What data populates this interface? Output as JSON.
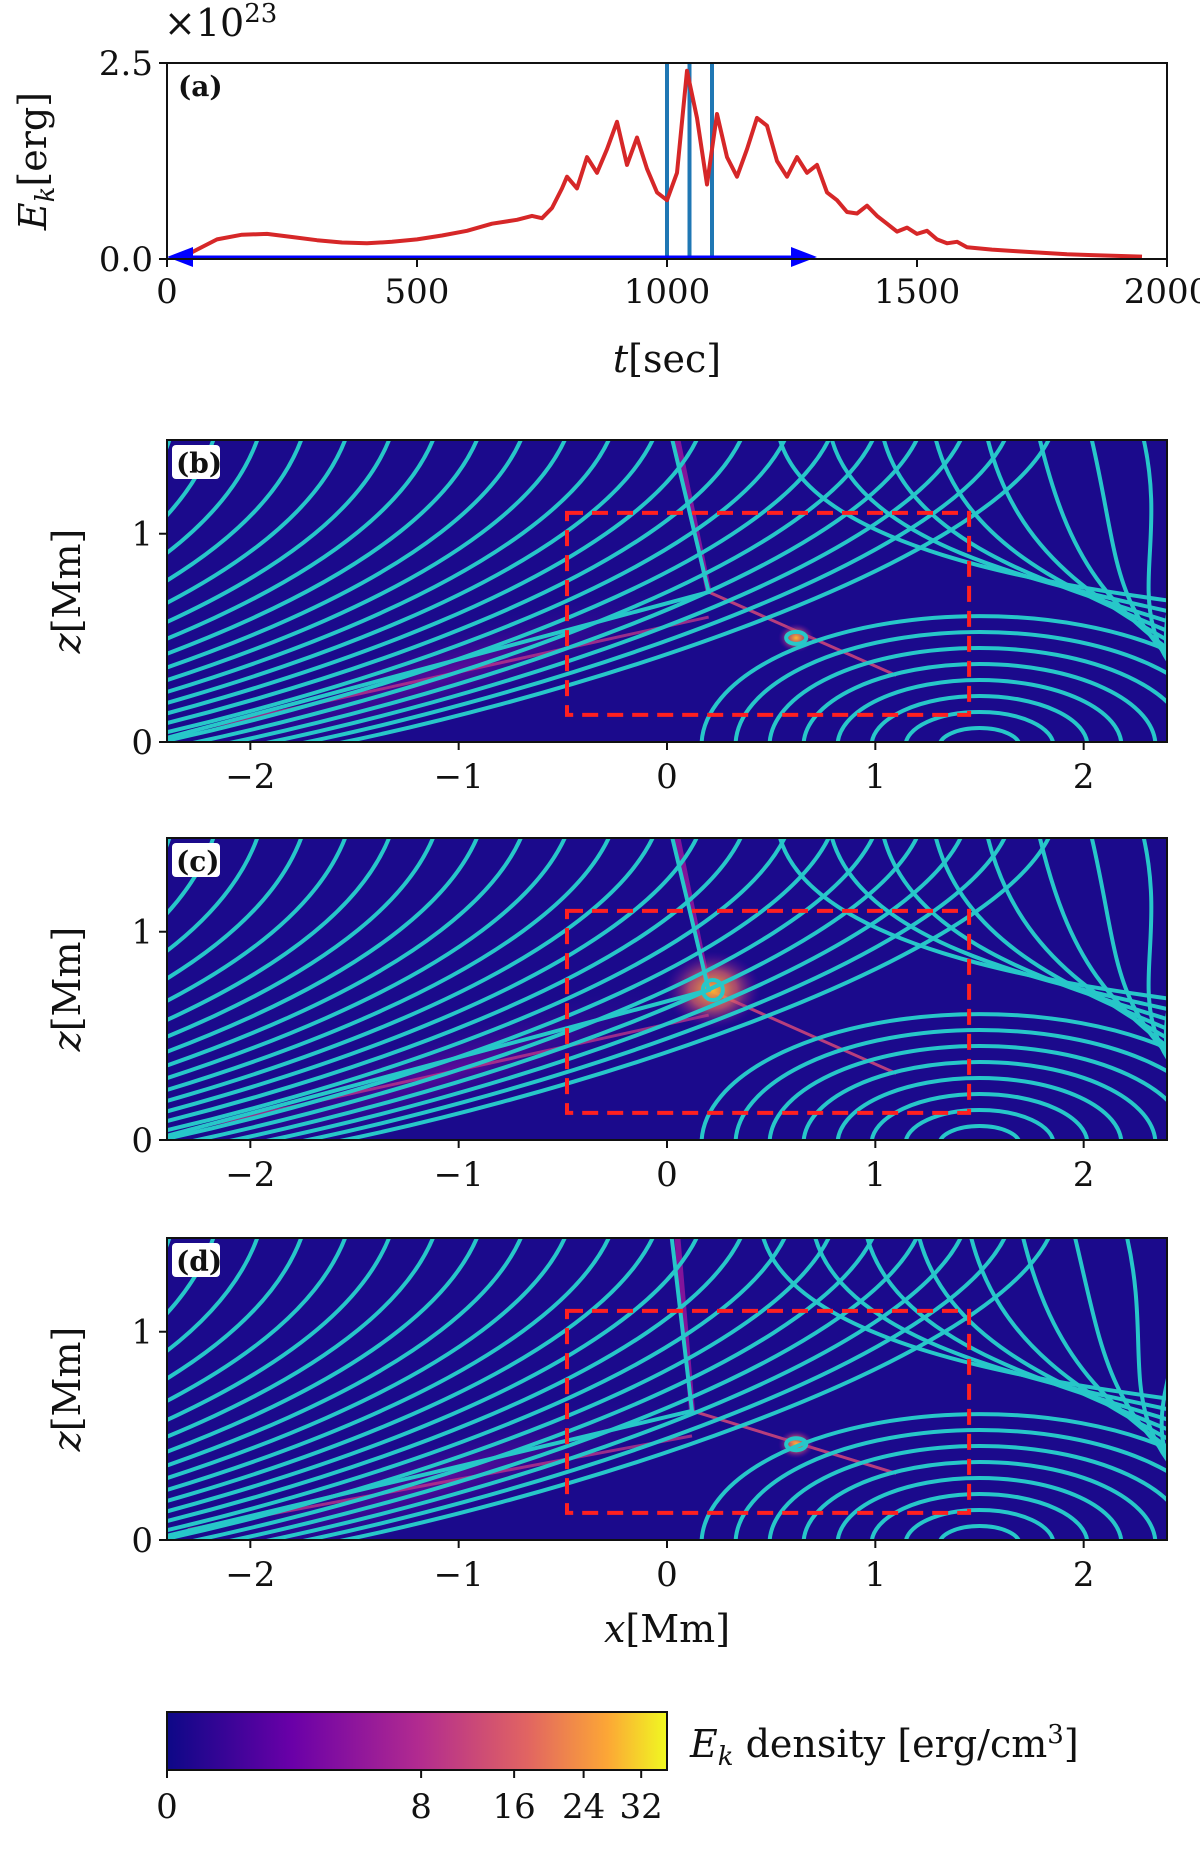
{
  "chart_data": [
    {
      "panel": "(a)",
      "type": "line",
      "xlabel": "t[sec]",
      "ylabel": "E_k[erg]",
      "y_multiplier": "×10^23",
      "xlim": [
        0,
        2000
      ],
      "ylim": [
        0,
        2.5
      ],
      "xticks": [
        "0",
        "500",
        "1000",
        "1500",
        "2000"
      ],
      "yticks": [
        "0.0",
        "2.5"
      ],
      "series": [
        {
          "color": "#d62728",
          "x": [
            30,
            60,
            100,
            150,
            200,
            250,
            300,
            350,
            400,
            450,
            500,
            550,
            600,
            650,
            700,
            730,
            750,
            770,
            790,
            800,
            820,
            840,
            860,
            880,
            900,
            920,
            940,
            960,
            980,
            1000,
            1020,
            1040,
            1060,
            1080,
            1100,
            1120,
            1140,
            1160,
            1180,
            1200,
            1220,
            1240,
            1260,
            1280,
            1300,
            1320,
            1340,
            1360,
            1380,
            1400,
            1420,
            1440,
            1460,
            1480,
            1500,
            1520,
            1540,
            1560,
            1580,
            1600,
            1650,
            1700,
            1750,
            1800,
            1850,
            1900,
            1950
          ],
          "values": [
            0.02,
            0.12,
            0.25,
            0.31,
            0.32,
            0.28,
            0.24,
            0.21,
            0.2,
            0.22,
            0.25,
            0.3,
            0.36,
            0.45,
            0.5,
            0.55,
            0.52,
            0.65,
            0.9,
            1.05,
            0.9,
            1.3,
            1.1,
            1.4,
            1.75,
            1.2,
            1.55,
            1.15,
            0.85,
            0.75,
            1.1,
            2.4,
            1.8,
            0.95,
            1.85,
            1.3,
            1.05,
            1.4,
            1.8,
            1.7,
            1.25,
            1.05,
            1.3,
            1.1,
            1.2,
            0.85,
            0.75,
            0.6,
            0.58,
            0.68,
            0.55,
            0.45,
            0.35,
            0.4,
            0.32,
            0.36,
            0.25,
            0.2,
            0.22,
            0.15,
            0.12,
            0.1,
            0.08,
            0.06,
            0.05,
            0.04,
            0.03
          ]
        }
      ],
      "markers": [
        1000,
        1045,
        1090
      ],
      "arrow_range": [
        0,
        1300
      ]
    },
    {
      "panel": "(b)",
      "type": "heatmap",
      "ylabel": "z[Mm]",
      "xlim": [
        -2.4,
        2.4
      ],
      "ylim": [
        0,
        1.45
      ],
      "xticks": [
        "−2",
        "−1",
        "0",
        "1",
        "2"
      ],
      "yticks": [
        "0",
        "1"
      ],
      "box": [
        -0.48,
        0.13,
        1.45,
        1.1
      ],
      "xpoint": [
        0.2,
        0.72
      ],
      "plasmoid": [
        0.62,
        0.5
      ]
    },
    {
      "panel": "(c)",
      "type": "heatmap",
      "ylabel": "z[Mm]",
      "xlim": [
        -2.4,
        2.4
      ],
      "ylim": [
        0,
        1.45
      ],
      "xticks": [
        "−2",
        "−1",
        "0",
        "1",
        "2"
      ],
      "yticks": [
        "0",
        "1"
      ],
      "box": [
        -0.48,
        0.13,
        1.45,
        1.1
      ],
      "xpoint": [
        0.2,
        0.72
      ],
      "plasmoid": [
        0.22,
        0.72
      ]
    },
    {
      "panel": "(d)",
      "type": "heatmap",
      "ylabel": "z[Mm]",
      "xlabel": "x[Mm]",
      "xlim": [
        -2.4,
        2.4
      ],
      "ylim": [
        0,
        1.45
      ],
      "xticks": [
        "−2",
        "−1",
        "0",
        "1",
        "2"
      ],
      "yticks": [
        "0",
        "1"
      ],
      "box": [
        -0.48,
        0.13,
        1.45,
        1.1
      ],
      "xpoint": [
        0.12,
        0.62
      ],
      "plasmoid": [
        0.62,
        0.46
      ]
    }
  ],
  "colorbar": {
    "label": "E_k density [erg/cm^3]",
    "ticks": [
      "0",
      "8",
      "16",
      "24",
      "32"
    ],
    "tick_values": [
      0,
      8,
      16,
      24,
      32
    ]
  }
}
